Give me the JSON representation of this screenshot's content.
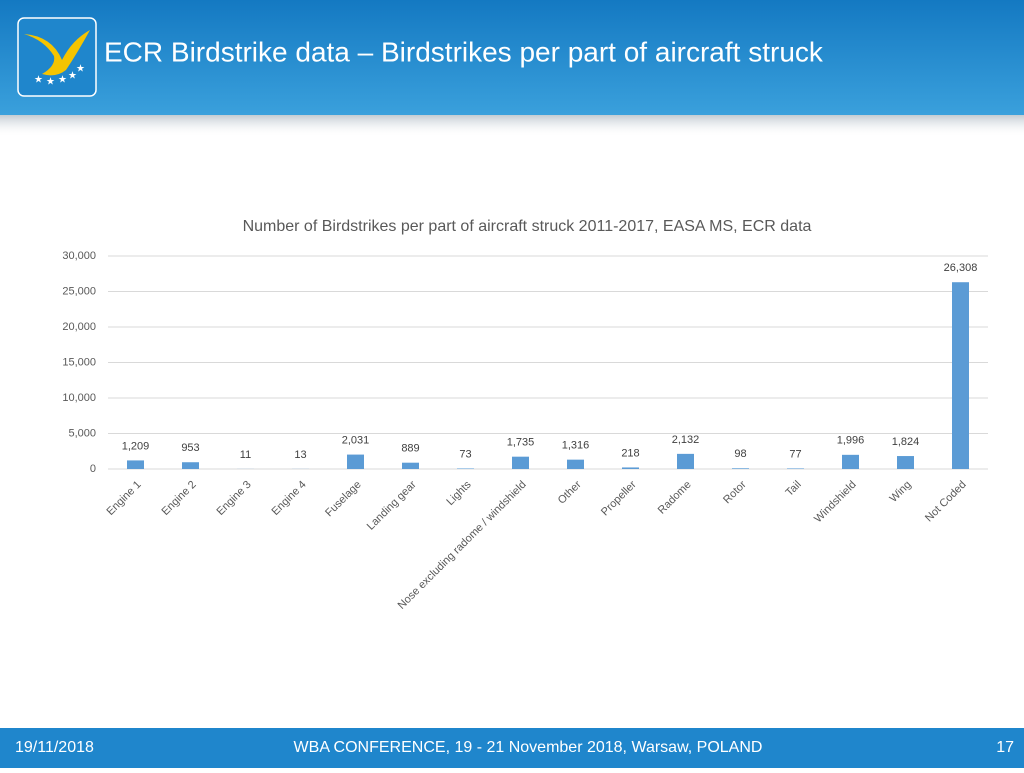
{
  "header": {
    "title": "ECR Birdstrike data – Birdstrikes per part of aircraft struck"
  },
  "footer": {
    "date": "19/11/2018",
    "event": "WBA CONFERENCE, 19 - 21 November 2018, Warsaw, POLAND",
    "page": "17"
  },
  "chart_data": {
    "type": "bar",
    "title": "Number of Birdstrikes per part of aircraft struck 2011-2017, EASA MS, ECR data",
    "categories": [
      "Engine 1",
      "Engine 2",
      "Engine 3",
      "Engine 4",
      "Fuselage",
      "Landing gear",
      "Lights",
      "Nose excluding radome / windshield",
      "Other",
      "Propeller",
      "Radome",
      "Rotor",
      "Tail",
      "Windshield",
      "Wing",
      "Not Coded"
    ],
    "values": [
      1209,
      953,
      11,
      13,
      2031,
      889,
      73,
      1735,
      1316,
      218,
      2132,
      98,
      77,
      1996,
      1824,
      26308
    ],
    "value_labels": [
      "1,209",
      "953",
      "11",
      "13",
      "2,031",
      "889",
      "73",
      "1,735",
      "1,316",
      "218",
      "2,132",
      "98",
      "77",
      "1,996",
      "1,824",
      "26,308"
    ],
    "color": "#5b9bd5",
    "ylim": [
      0,
      30000
    ],
    "yticks": [
      0,
      {
        "value": 5000,
        "label": "5,000"
      },
      {
        "value": 10000,
        "label": "10,000"
      },
      {
        "value": 15000,
        "label": "15,000"
      },
      {
        "value": 20000,
        "label": "20,000"
      },
      {
        "value": 25000,
        "label": "25,000"
      },
      {
        "value": 30000,
        "label": "30,000"
      }
    ],
    "grid": true
  }
}
